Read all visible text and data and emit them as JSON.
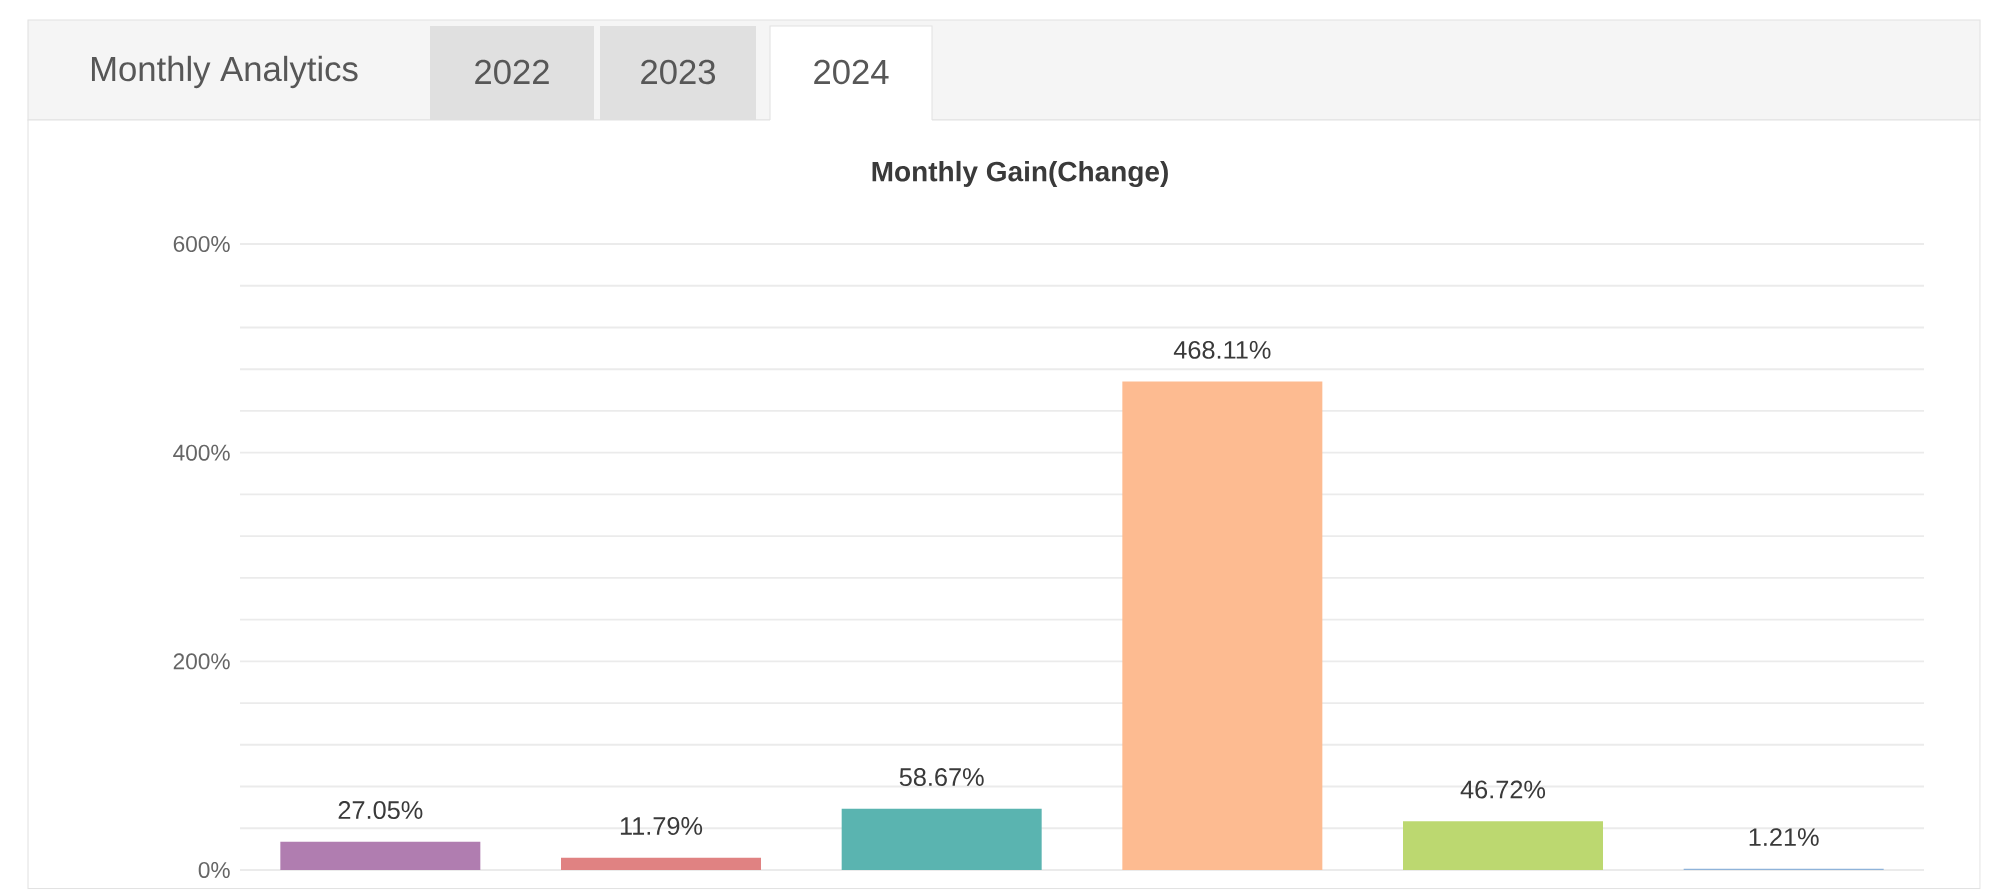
{
  "chart_data": {
    "type": "bar",
    "title": "Monthly Gain(Change)",
    "annotations": [
      "Monthly Analytics",
      "2022",
      "2023",
      "2024"
    ],
    "categories": [
      null,
      null,
      null,
      null,
      null,
      null
    ],
    "values": [
      27.05,
      11.79,
      58.67,
      468.11,
      46.72,
      1.21
    ],
    "colors": [
      "#b07db0",
      "#e08282",
      "#5ab4b0",
      "#fdbb91",
      "#bcd870",
      "#8fb3d9"
    ],
    "value_labels": [
      "27.05%",
      "11.79%",
      "58.67%",
      "468.11%",
      "46.72%",
      "1.21%"
    ],
    "ylim": [
      0,
      600
    ],
    "yticks": [
      {
        "value": 0,
        "label": "0%"
      },
      {
        "value": 40,
        "label": null
      },
      {
        "value": 80,
        "label": null
      },
      {
        "value": 120,
        "label": null
      },
      {
        "value": 160,
        "label": null
      },
      {
        "value": 200,
        "label": "200%"
      },
      {
        "value": 240,
        "label": null
      },
      {
        "value": 280,
        "label": null
      },
      {
        "value": 320,
        "label": null
      },
      {
        "value": 360,
        "label": null
      },
      {
        "value": 400,
        "label": "400%"
      },
      {
        "value": 440,
        "label": null
      },
      {
        "value": 480,
        "label": null
      },
      {
        "value": 520,
        "label": null
      },
      {
        "value": 560,
        "label": null
      },
      {
        "value": 600,
        "label": "600%"
      }
    ],
    "grid": true
  }
}
